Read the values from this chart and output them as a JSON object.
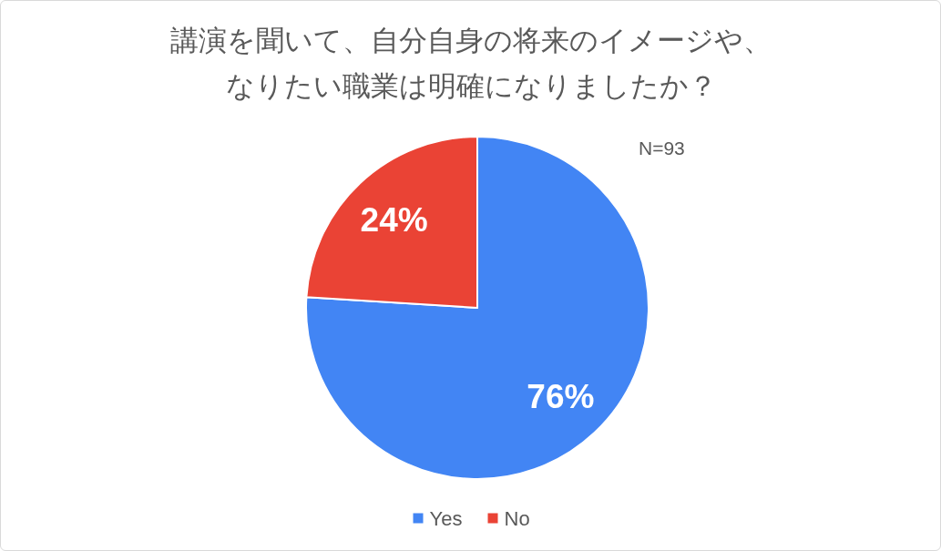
{
  "chart_data": {
    "type": "pie",
    "title": "講演を聞いて、自分自身の将来のイメージや、なりたい職業は明確になりましたか？",
    "categories": [
      "Yes",
      "No"
    ],
    "values": [
      76,
      24
    ],
    "colors": [
      "#4285f4",
      "#ea4335"
    ],
    "value_labels": [
      "76%",
      "24%"
    ],
    "legend": "bottom",
    "annotations": [
      "N=93"
    ]
  }
}
